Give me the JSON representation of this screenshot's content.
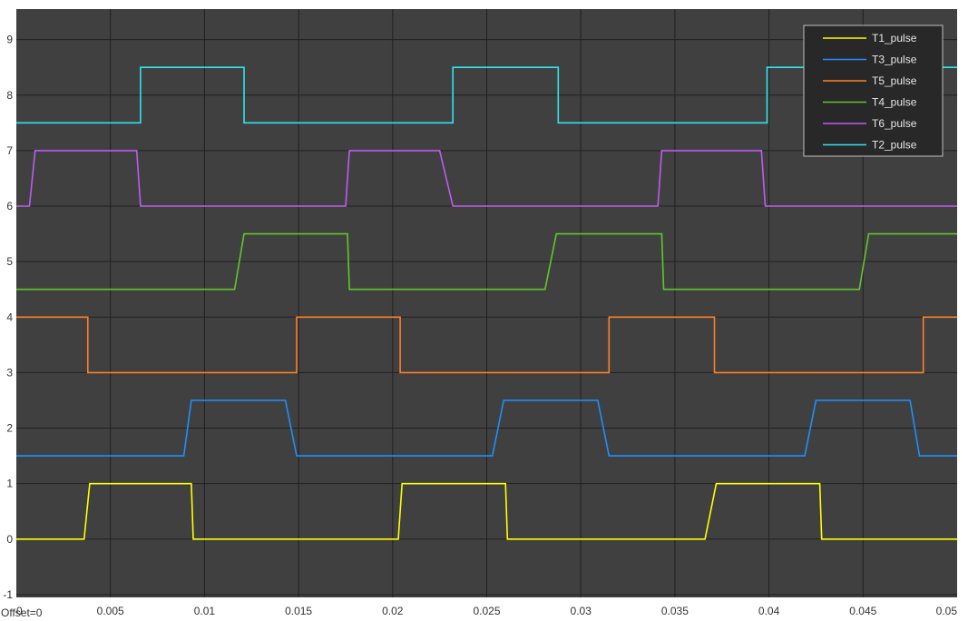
{
  "chart_data": {
    "type": "line",
    "style": "step",
    "title": "",
    "xlabel": "",
    "ylabel": "",
    "xlim": [
      0,
      0.05
    ],
    "ylim": [
      -1.05,
      9.55
    ],
    "x_ticks": [
      0,
      0.005,
      0.01,
      0.015,
      0.02,
      0.025,
      0.03,
      0.035,
      0.04,
      0.045,
      0.05
    ],
    "x_tick_labels": [
      "0",
      "0.005",
      "0.01",
      "0.015",
      "0.02",
      "0.025",
      "0.03",
      "0.035",
      "0.04",
      "0.045",
      "0.05"
    ],
    "y_ticks": [
      -1,
      0,
      1,
      2,
      3,
      4,
      5,
      6,
      7,
      8,
      9
    ],
    "y_tick_labels": [
      "-1",
      "0",
      "1",
      "2",
      "3",
      "4",
      "5",
      "6",
      "7",
      "8",
      "9"
    ],
    "grid": true,
    "legend_position": "top-right",
    "offset_label": "Offset=0",
    "series": [
      {
        "name": "T1_pulse",
        "color": "#ffff00",
        "x": [
          0,
          0.0036,
          0.0039,
          0.0093,
          0.0094,
          0.0203,
          0.0205,
          0.026,
          0.0261,
          0.0366,
          0.0372,
          0.0427,
          0.0428,
          0.05
        ],
        "y": [
          0,
          0,
          1,
          1,
          0,
          0,
          1,
          1,
          0,
          0,
          1,
          1,
          0,
          0
        ]
      },
      {
        "name": "T3_pulse",
        "color": "#1e90ff",
        "x": [
          0,
          0.0089,
          0.0093,
          0.0143,
          0.0149,
          0.0253,
          0.0259,
          0.0309,
          0.0315,
          0.0419,
          0.0425,
          0.0475,
          0.048,
          0.05
        ],
        "y": [
          1.5,
          1.5,
          2.5,
          2.5,
          1.5,
          1.5,
          2.5,
          2.5,
          1.5,
          1.5,
          2.5,
          2.5,
          1.5,
          1.5
        ]
      },
      {
        "name": "T5_pulse",
        "color": "#ff7f27",
        "x": [
          0,
          0.0038,
          0.0038,
          0.0149,
          0.0149,
          0.0204,
          0.0204,
          0.0315,
          0.0315,
          0.0371,
          0.0371,
          0.0482,
          0.0482,
          0.05
        ],
        "y": [
          4,
          4,
          3,
          3,
          4,
          4,
          3,
          3,
          4,
          4,
          3,
          3,
          4,
          4
        ]
      },
      {
        "name": "T4_pulse",
        "color": "#5ec72b",
        "x": [
          0,
          0.0116,
          0.0121,
          0.0176,
          0.0177,
          0.0281,
          0.0287,
          0.0343,
          0.0344,
          0.0448,
          0.0453,
          0.05
        ],
        "y": [
          4.5,
          4.5,
          5.5,
          5.5,
          4.5,
          4.5,
          5.5,
          5.5,
          4.5,
          4.5,
          5.5,
          5.5
        ]
      },
      {
        "name": "T6_pulse",
        "color": "#bf5af2",
        "x": [
          0,
          0.0007,
          0.001,
          0.0064,
          0.0066,
          0.0175,
          0.0177,
          0.0225,
          0.0232,
          0.0341,
          0.0343,
          0.0396,
          0.0398,
          0.05
        ],
        "y": [
          6,
          6,
          7,
          7,
          6,
          6,
          7,
          7,
          6,
          6,
          7,
          7,
          6,
          6
        ]
      },
      {
        "name": "T2_pulse",
        "color": "#2fe3f0",
        "x": [
          0,
          0.0066,
          0.0066,
          0.0121,
          0.0121,
          0.0232,
          0.0232,
          0.0288,
          0.0288,
          0.0399,
          0.0399,
          0.05
        ],
        "y": [
          7.5,
          7.5,
          8.5,
          8.5,
          7.5,
          7.5,
          8.5,
          8.5,
          7.5,
          7.5,
          8.5,
          8.5
        ]
      }
    ]
  },
  "colors": {
    "plot_background": "#404040",
    "grid": "#202020",
    "legend_background": "#282828",
    "legend_border": "#bfbfbf"
  }
}
